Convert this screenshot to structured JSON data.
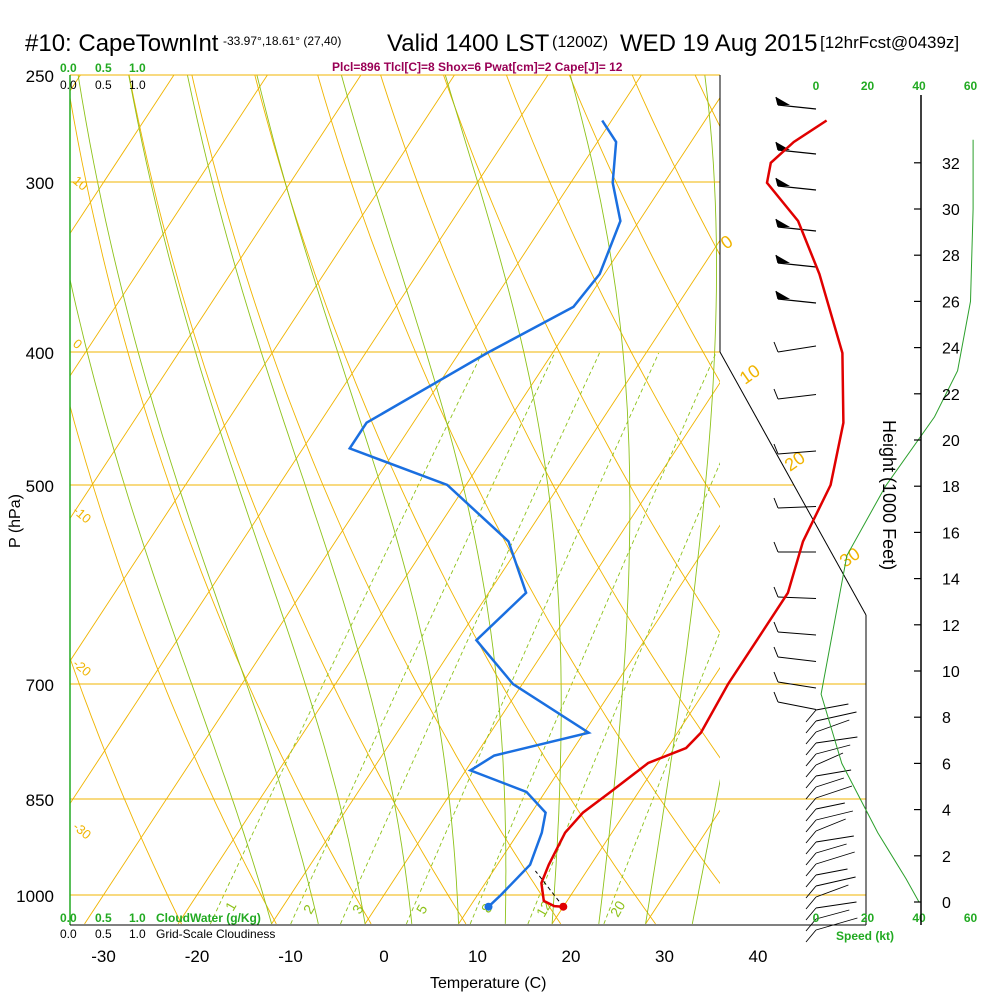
{
  "header": {
    "title": "#10: CapeTownInt",
    "location": "-33.97°,18.61° (27,40)",
    "valid": "Valid 1400 LST",
    "zulu": "(1200Z)",
    "date": "WED 19 Aug 2015",
    "forecast": "[12hrFcst@0439z]",
    "indices": "Plcl=896 Tlcl[C]=8 Shox=6 Pwat[cm]=2 Cape[J]= 12"
  },
  "axes": {
    "xlabel": "Temperature (C)",
    "ylabel": "P (hPa)",
    "height_label": "Height (1000 Feet)",
    "speed_label": "Speed (kt)"
  },
  "legend": {
    "cloudwater_label": "CloudWater (g/Kg)",
    "cloudiness_label": "Grid-Scale Cloudiness",
    "cw_ticks": [
      "0.0",
      "0.5",
      "1.0"
    ],
    "cloud_ticks": [
      "0.0",
      "0.5",
      "1.0"
    ]
  },
  "colors": {
    "temperature": "#e00000",
    "dewpoint": "#1a6fe0",
    "isobar": "#f0b400",
    "dry_adiabat": "#f0b400",
    "moist_adiabat": "#8ec21a",
    "mixing_ratio": "#8ec21a",
    "height_profile": "#2ca02c",
    "green_text": "#22aa22",
    "indices_text": "#990055"
  },
  "chart_data": {
    "type": "skew-t",
    "pressure_ticks": [
      250,
      300,
      400,
      500,
      700,
      850,
      1000
    ],
    "temperature_ticks": [
      -30,
      -20,
      -10,
      0,
      10,
      20,
      30,
      40
    ],
    "height_ticks": [
      0,
      2,
      4,
      6,
      8,
      10,
      12,
      14,
      16,
      18,
      20,
      22,
      24,
      26,
      28,
      30,
      32
    ],
    "speed_ticks": [
      "0",
      "20",
      "40",
      "60"
    ],
    "dry_adiabat_labels": [
      "10",
      "0",
      "-10",
      "-20",
      "-30"
    ],
    "moist_adiabat_labels": [
      "0",
      "10",
      "20",
      "30"
    ],
    "mixing_ratio_labels": [
      "1",
      "2",
      "3",
      "5",
      "8",
      "12",
      "20"
    ],
    "temperature_profile": [
      {
        "p": 1020,
        "t": 20.0
      },
      {
        "p": 1019,
        "t": 19.0
      },
      {
        "p": 1010,
        "t": 17.5
      },
      {
        "p": 980,
        "t": 16.0
      },
      {
        "p": 950,
        "t": 15.5
      },
      {
        "p": 900,
        "t": 15.0
      },
      {
        "p": 870,
        "t": 15.5
      },
      {
        "p": 840,
        "t": 17.0
      },
      {
        "p": 800,
        "t": 19.0
      },
      {
        "p": 780,
        "t": 22.0
      },
      {
        "p": 760,
        "t": 22.5
      },
      {
        "p": 700,
        "t": 22.0
      },
      {
        "p": 650,
        "t": 22.0
      },
      {
        "p": 600,
        "t": 22.0
      },
      {
        "p": 550,
        "t": 20.0
      },
      {
        "p": 500,
        "t": 19.0
      },
      {
        "p": 450,
        "t": 16.0
      },
      {
        "p": 400,
        "t": 11.0
      },
      {
        "p": 350,
        "t": 3.0
      },
      {
        "p": 320,
        "t": -3.0
      },
      {
        "p": 300,
        "t": -9.0
      },
      {
        "p": 290,
        "t": -10.0
      },
      {
        "p": 280,
        "t": -9.0
      },
      {
        "p": 270,
        "t": -7.0
      }
    ],
    "dewpoint_profile": [
      {
        "p": 1020,
        "t": 12.0
      },
      {
        "p": 1000,
        "t": 12.5
      },
      {
        "p": 950,
        "t": 13.5
      },
      {
        "p": 900,
        "t": 12.5
      },
      {
        "p": 870,
        "t": 11.5
      },
      {
        "p": 840,
        "t": 8.0
      },
      {
        "p": 810,
        "t": 0.5
      },
      {
        "p": 790,
        "t": 2.0
      },
      {
        "p": 760,
        "t": 10.5
      },
      {
        "p": 700,
        "t": -1.0
      },
      {
        "p": 650,
        "t": -8.0
      },
      {
        "p": 600,
        "t": -6.0
      },
      {
        "p": 550,
        "t": -11.5
      },
      {
        "p": 500,
        "t": -22.0
      },
      {
        "p": 470,
        "t": -35.0
      },
      {
        "p": 450,
        "t": -35.0
      },
      {
        "p": 400,
        "t": -27.0
      },
      {
        "p": 370,
        "t": -21.0
      },
      {
        "p": 350,
        "t": -20.5
      },
      {
        "p": 320,
        "t": -22.0
      },
      {
        "p": 300,
        "t": -25.5
      },
      {
        "p": 280,
        "t": -28.0
      },
      {
        "p": 270,
        "t": -31.0
      }
    ],
    "surface_temperature": 20.0,
    "surface_dewpoint": 12.0,
    "height_profile": [
      {
        "h": 0,
        "spd": 40
      },
      {
        "h": 1,
        "spd": 35
      },
      {
        "h": 3,
        "spd": 24
      },
      {
        "h": 6,
        "spd": 10
      },
      {
        "h": 9,
        "spd": 2
      },
      {
        "h": 12,
        "spd": 7
      },
      {
        "h": 15,
        "spd": 12
      },
      {
        "h": 18,
        "spd": 27
      },
      {
        "h": 21,
        "spd": 46
      },
      {
        "h": 23,
        "spd": 55
      },
      {
        "h": 26,
        "spd": 60
      },
      {
        "h": 30,
        "spd": 61
      },
      {
        "h": 33,
        "spd": 61
      }
    ]
  }
}
